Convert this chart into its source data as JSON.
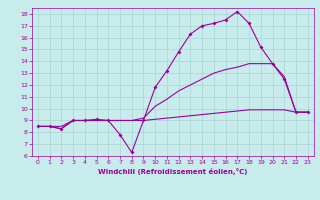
{
  "xlabel": "Windchill (Refroidissement éolien,°C)",
  "bg_color": "#c8ecec",
  "line_color": "#990099",
  "grid_color": "#aad4d4",
  "xlim": [
    -0.5,
    23.5
  ],
  "ylim": [
    6,
    18.5
  ],
  "xticks": [
    0,
    1,
    2,
    3,
    4,
    5,
    6,
    7,
    8,
    9,
    10,
    11,
    12,
    13,
    14,
    15,
    16,
    17,
    18,
    19,
    20,
    21,
    22,
    23
  ],
  "yticks": [
    6,
    7,
    8,
    9,
    10,
    11,
    12,
    13,
    14,
    15,
    16,
    17,
    18
  ],
  "line1_x": [
    0,
    1,
    2,
    3,
    4,
    5,
    6,
    7,
    8,
    9,
    10,
    11,
    12,
    13,
    14,
    15,
    16,
    17,
    18,
    19,
    20,
    21,
    22,
    23
  ],
  "line1_y": [
    8.5,
    8.5,
    8.3,
    9.0,
    9.0,
    9.1,
    9.0,
    7.8,
    6.3,
    9.0,
    11.8,
    13.2,
    14.8,
    16.3,
    17.0,
    17.2,
    17.5,
    18.2,
    17.2,
    15.2,
    13.8,
    12.5,
    9.7,
    9.7
  ],
  "line2_x": [
    0,
    1,
    2,
    3,
    4,
    5,
    6,
    7,
    8,
    9,
    10,
    11,
    12,
    13,
    14,
    15,
    16,
    17,
    18,
    19,
    20,
    21,
    22,
    23
  ],
  "line2_y": [
    8.5,
    8.5,
    8.3,
    9.0,
    9.0,
    9.0,
    9.0,
    9.0,
    9.0,
    9.0,
    9.1,
    9.2,
    9.3,
    9.4,
    9.5,
    9.6,
    9.7,
    9.8,
    9.9,
    9.9,
    9.9,
    9.9,
    9.7,
    9.7
  ],
  "line3_x": [
    0,
    1,
    2,
    3,
    4,
    5,
    6,
    7,
    8,
    9,
    10,
    11,
    12,
    13,
    14,
    15,
    16,
    17,
    18,
    19,
    20,
    21,
    22,
    23
  ],
  "line3_y": [
    8.5,
    8.5,
    8.5,
    9.0,
    9.0,
    9.0,
    9.0,
    9.0,
    9.0,
    9.2,
    10.2,
    10.8,
    11.5,
    12.0,
    12.5,
    13.0,
    13.3,
    13.5,
    13.8,
    13.8,
    13.8,
    12.7,
    9.7,
    9.7
  ],
  "marker": "D",
  "markersize": 2.0,
  "linewidth": 0.8,
  "tick_labelsize": 4.5,
  "xlabel_fontsize": 5.0,
  "xlabel_fontweight": "bold"
}
